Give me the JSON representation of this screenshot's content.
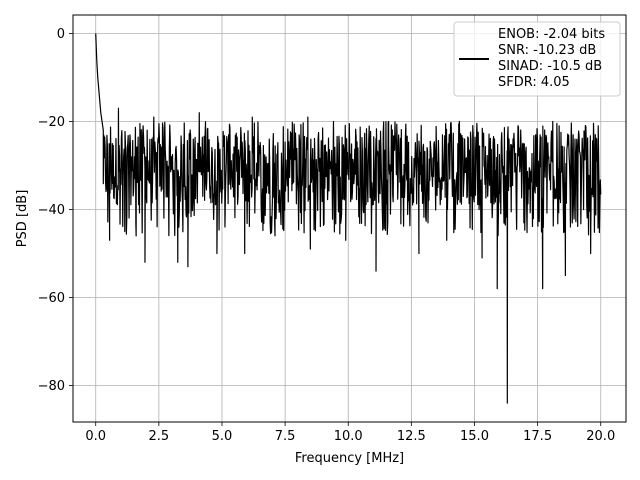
{
  "chart_data": {
    "type": "line",
    "title": "",
    "xlabel": "Frequency [MHz]",
    "ylabel": "PSD [dB]",
    "xlim": [
      -0.9,
      21.0
    ],
    "ylim": [
      -88.3,
      4.2
    ],
    "xticks": [
      0.0,
      2.5,
      5.0,
      7.5,
      10.0,
      12.5,
      15.0,
      17.5,
      20.0
    ],
    "xtick_labels": [
      "0.0",
      "2.5",
      "5.0",
      "7.5",
      "10.0",
      "12.5",
      "15.0",
      "17.5",
      "20.0"
    ],
    "yticks": [
      0,
      -20,
      -40,
      -60,
      -80
    ],
    "ytick_labels": [
      "0",
      "−20",
      "−40",
      "−60",
      "−80"
    ],
    "grid": true,
    "legend_position": "top-right",
    "series": [
      {
        "color": "#000000",
        "noise_floor_db": -31,
        "noise_band_db": [
          -40,
          -20
        ],
        "x_range_mhz": [
          0.0,
          20.0
        ],
        "peak": {
          "x": 0.0,
          "y": 0
        },
        "rolloff": [
          [
            0.0,
            0
          ],
          [
            0.04,
            -6
          ],
          [
            0.08,
            -10
          ],
          [
            0.14,
            -14
          ],
          [
            0.2,
            -18
          ],
          [
            0.3,
            -22
          ]
        ],
        "notable_dips": [
          [
            0.55,
            -47
          ],
          [
            1.15,
            -45
          ],
          [
            1.6,
            -46
          ],
          [
            1.95,
            -52
          ],
          [
            3.25,
            -52
          ],
          [
            3.65,
            -53
          ],
          [
            4.8,
            -50
          ],
          [
            5.9,
            -50
          ],
          [
            7.1,
            -46
          ],
          [
            8.5,
            -49
          ],
          [
            9.9,
            -47
          ],
          [
            11.1,
            -54
          ],
          [
            12.8,
            -50
          ],
          [
            13.9,
            -47
          ],
          [
            15.3,
            -51
          ],
          [
            15.9,
            -58
          ],
          [
            16.3,
            -84
          ],
          [
            17.7,
            -58
          ],
          [
            18.6,
            -55
          ],
          [
            19.6,
            -50
          ]
        ],
        "notable_peaks": [
          [
            0.9,
            -17
          ],
          [
            2.3,
            -19
          ],
          [
            4.1,
            -18
          ],
          [
            6.2,
            -19
          ],
          [
            8.4,
            -19
          ],
          [
            11.6,
            -20
          ],
          [
            14.4,
            -20
          ],
          [
            18.1,
            -20
          ],
          [
            19.9,
            -21
          ]
        ]
      }
    ],
    "legend_lines": [
      "ENOB: -2.04 bits",
      "SNR: -10.23 dB",
      "SINAD: -10.5 dB",
      "SFDR: 4.05"
    ]
  }
}
